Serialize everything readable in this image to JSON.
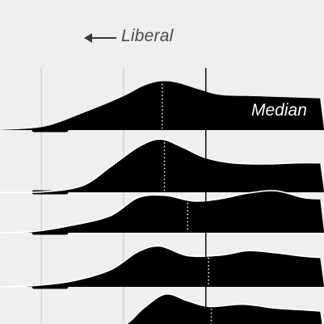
{
  "direction_label": "Liberal",
  "colors": {
    "background": "#efefef",
    "fill": "#000000",
    "outline": "#ffffff",
    "gridline": "#cfcfcf",
    "label_text": "#4a4a4a"
  },
  "chart_data": {
    "type": "ridgeline",
    "title": "",
    "xlabel": "",
    "ylabel": "",
    "grid": true,
    "annotation": "Median",
    "series": [
      {
        "median": 0.294,
        "x": [
          0.0,
          0.08,
          0.15,
          0.22,
          0.26,
          0.29,
          0.32,
          0.36,
          0.4,
          0.46,
          0.52,
          0.58
        ],
        "density": [
          0.0,
          0.06,
          0.3,
          0.58,
          0.78,
          0.86,
          0.84,
          0.72,
          0.62,
          0.6,
          0.58,
          0.56
        ]
      },
      {
        "median": 0.298,
        "x": [
          0.0,
          0.08,
          0.15,
          0.2,
          0.25,
          0.29,
          0.33,
          0.37,
          0.42,
          0.48,
          0.54,
          0.58
        ],
        "density": [
          0.0,
          0.01,
          0.12,
          0.45,
          0.8,
          0.94,
          0.8,
          0.62,
          0.52,
          0.5,
          0.52,
          0.52
        ]
      },
      {
        "median": 0.34,
        "x": [
          0.0,
          0.06,
          0.13,
          0.2,
          0.25,
          0.3,
          0.35,
          0.4,
          0.45,
          0.5,
          0.55,
          0.58
        ],
        "density": [
          0.0,
          0.02,
          0.13,
          0.3,
          0.62,
          0.66,
          0.56,
          0.6,
          0.7,
          0.74,
          0.62,
          0.6
        ]
      },
      {
        "median": 0.378,
        "x": [
          0.0,
          0.06,
          0.13,
          0.2,
          0.25,
          0.29,
          0.34,
          0.4,
          0.45,
          0.5,
          0.55,
          0.58
        ],
        "density": [
          0.0,
          0.02,
          0.1,
          0.3,
          0.62,
          0.72,
          0.55,
          0.56,
          0.64,
          0.6,
          0.54,
          0.52
        ]
      },
      {
        "median": 0.383,
        "x": [
          0.0,
          0.1,
          0.18,
          0.23,
          0.26,
          0.3,
          0.34,
          0.38,
          0.44,
          0.5,
          0.55,
          0.58
        ],
        "density": [
          0.0,
          0.0,
          0.05,
          0.28,
          0.55,
          0.8,
          0.68,
          0.58,
          0.62,
          0.55,
          0.52,
          0.5
        ]
      }
    ],
    "reference_lines": [
      0.075,
      0.224
    ],
    "median_reference_line": 0.373
  }
}
